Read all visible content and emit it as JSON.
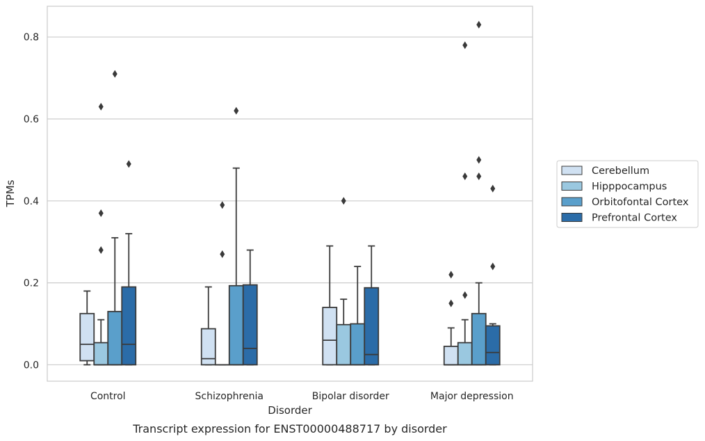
{
  "chart_data": {
    "type": "box",
    "title": "",
    "caption": "Transcript expression for ENST00000488717 by disorder",
    "xlabel": "Disorder",
    "ylabel": "TPMs",
    "ylim": [
      -0.04,
      0.875
    ],
    "yticks": [
      "0.0",
      "0.2",
      "0.4",
      "0.6",
      "0.8"
    ],
    "grid": "horizontal",
    "legend_position": "right",
    "categories": [
      "Control",
      "Schizophrenia",
      "Bipolar disorder",
      "Major depression"
    ],
    "series": [
      {
        "name": "Cerebellum",
        "color": "#d0e1f2",
        "boxes": [
          {
            "whisker_low": 0.0,
            "q1": 0.01,
            "median": 0.05,
            "q3": 0.125,
            "whisker_high": 0.18,
            "outliers": []
          },
          {
            "whisker_low": 0.0,
            "q1": 0.0,
            "median": 0.015,
            "q3": 0.088,
            "whisker_high": 0.19,
            "outliers": []
          },
          {
            "whisker_low": 0.0,
            "q1": 0.0,
            "median": 0.06,
            "q3": 0.14,
            "whisker_high": 0.29,
            "outliers": []
          },
          {
            "whisker_low": 0.0,
            "q1": 0.0,
            "median": 0.0,
            "q3": 0.045,
            "whisker_high": 0.09,
            "outliers": [
              0.15,
              0.22
            ]
          }
        ]
      },
      {
        "name": "Hipppocampus",
        "color": "#9ac8e0",
        "boxes": [
          {
            "whisker_low": 0.0,
            "q1": 0.0,
            "median": 0.0,
            "q3": 0.054,
            "whisker_high": 0.11,
            "outliers": [
              0.28,
              0.37,
              0.63
            ]
          },
          {
            "whisker_low": 0.0,
            "q1": 0.0,
            "median": 0.0,
            "q3": 0.0,
            "whisker_high": 0.0,
            "outliers": [
              0.27,
              0.39
            ]
          },
          {
            "whisker_low": 0.0,
            "q1": 0.0,
            "median": 0.0,
            "q3": 0.098,
            "whisker_high": 0.16,
            "outliers": [
              0.4
            ]
          },
          {
            "whisker_low": 0.0,
            "q1": 0.0,
            "median": 0.0,
            "q3": 0.054,
            "whisker_high": 0.11,
            "outliers": [
              0.17,
              0.46,
              0.78
            ]
          }
        ]
      },
      {
        "name": "Orbitofontal Cortex",
        "color": "#5a9fcb",
        "boxes": [
          {
            "whisker_low": 0.0,
            "q1": 0.0,
            "median": 0.0,
            "q3": 0.13,
            "whisker_high": 0.31,
            "outliers": [
              0.71
            ]
          },
          {
            "whisker_low": 0.0,
            "q1": 0.0,
            "median": 0.0,
            "q3": 0.193,
            "whisker_high": 0.48,
            "outliers": [
              0.62
            ]
          },
          {
            "whisker_low": 0.0,
            "q1": 0.0,
            "median": 0.0,
            "q3": 0.1,
            "whisker_high": 0.24,
            "outliers": []
          },
          {
            "whisker_low": 0.0,
            "q1": 0.0,
            "median": 0.0,
            "q3": 0.125,
            "whisker_high": 0.2,
            "outliers": [
              0.46,
              0.5,
              0.83
            ]
          }
        ]
      },
      {
        "name": "Prefrontal Cortex",
        "color": "#2b6ca8",
        "boxes": [
          {
            "whisker_low": 0.0,
            "q1": 0.0,
            "median": 0.05,
            "q3": 0.19,
            "whisker_high": 0.32,
            "outliers": [
              0.49
            ]
          },
          {
            "whisker_low": 0.0,
            "q1": 0.0,
            "median": 0.04,
            "q3": 0.195,
            "whisker_high": 0.28,
            "outliers": []
          },
          {
            "whisker_low": 0.0,
            "q1": 0.0,
            "median": 0.025,
            "q3": 0.188,
            "whisker_high": 0.29,
            "outliers": []
          },
          {
            "whisker_low": 0.0,
            "q1": 0.0,
            "median": 0.03,
            "q3": 0.095,
            "whisker_high": 0.1,
            "outliers": [
              0.24,
              0.43
            ]
          }
        ]
      }
    ]
  }
}
